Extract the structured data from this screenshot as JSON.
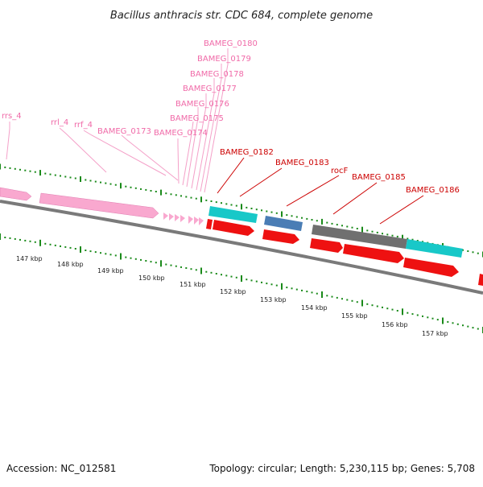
{
  "title": "Bacillus anthracis str. CDC 684, complete genome",
  "footer": {
    "accession": "Accession: NC_012581",
    "summary": "Topology: circular; Length: 5,230,115 bp; Genes: 5,708"
  },
  "colors": {
    "rna": "#f9a8cf",
    "rna_label": "#f06aa8",
    "cds": "#ee1111",
    "cds_label": "#cc0000",
    "cyan": "#18c8c8",
    "blue": "#4a7db5",
    "gray": "#707070",
    "axis": "#808080",
    "ticks": "#1a8a1a"
  },
  "scale": {
    "ticks": [
      "147 kbp",
      "148 kbp",
      "149 kbp",
      "150 kbp",
      "151 kbp",
      "152 kbp",
      "153 kbp",
      "154 kbp",
      "155 kbp",
      "156 kbp",
      "157 kbp"
    ]
  },
  "features": {
    "pink_labels": [
      "rrs_4",
      "rrl_4",
      "rrf_4",
      "BAMEG_0173",
      "BAMEG_0174",
      "BAMEG_0175",
      "BAMEG_0176",
      "BAMEG_0177",
      "BAMEG_0178",
      "BAMEG_0179",
      "BAMEG_0180"
    ],
    "red_labels": [
      "BAMEG_0182",
      "BAMEG_0183",
      "rocF",
      "BAMEG_0185",
      "BAMEG_0186"
    ]
  }
}
